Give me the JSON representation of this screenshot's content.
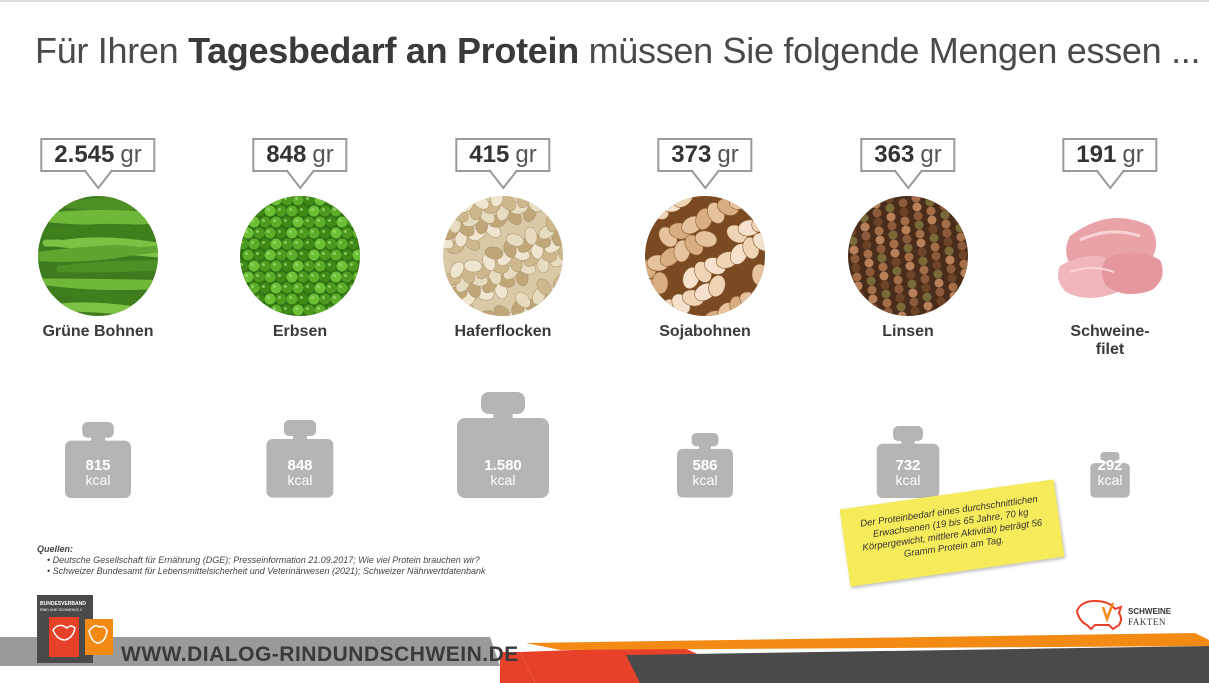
{
  "headline": {
    "prefix": "Für Ihren ",
    "bold": "Tagesbedarf an Protein",
    "suffix": " müssen Sie folgende Mengen essen ..."
  },
  "foods": [
    {
      "amount": "2.545",
      "unit": "gr",
      "name": "Grüne Bohnen",
      "kcal_value": "815",
      "kcal_unit": "kcal",
      "kcal": 815,
      "image": "green-beans-image"
    },
    {
      "amount": "848",
      "unit": "gr",
      "name": "Erbsen",
      "kcal_value": "848",
      "kcal_unit": "kcal",
      "kcal": 848,
      "image": "peas-image"
    },
    {
      "amount": "415",
      "unit": "gr",
      "name": "Haferflocken",
      "kcal_value": "1.580",
      "kcal_unit": "kcal",
      "kcal": 1580,
      "image": "oat-flakes-image"
    },
    {
      "amount": "373",
      "unit": "gr",
      "name": "Sojabohnen",
      "kcal_value": "586",
      "kcal_unit": "kcal",
      "kcal": 586,
      "image": "soybeans-image"
    },
    {
      "amount": "363",
      "unit": "gr",
      "name": "Linsen",
      "kcal_value": "732",
      "kcal_unit": "kcal",
      "kcal": 732,
      "image": "lentils-image"
    },
    {
      "amount": "191",
      "unit": "gr",
      "name": "Schweine-\nfilet",
      "kcal_value": "292",
      "kcal_unit": "kcal",
      "kcal": 292,
      "image": "pork-fillet-image"
    }
  ],
  "sources": {
    "title": "Quellen:",
    "items": [
      "Deutsche Gesellschaft für Ernährung (DGE); Presseinformation 21.09.2017; Wie viel Protein brauchen wir?",
      "Schweizer Bundesamt für Lebensmittelsicherheit und Veterinärwesen (2021); Schweizer Nährwertdatenbank"
    ]
  },
  "note": "Der Proteinbedarf eines durchschnittlichen Erwachsenen (19 bis 65 Jahre, 70 kg Körpergewicht, mittlere Aktivität) beträgt 56 Gramm Protein am Tag.",
  "footer": {
    "url": "WWW.DIALOG-RINDUNDSCHWEIN.DE",
    "logo_left_text1": "BUNDESVERBAND",
    "logo_left_text2": "RIND UND SCHWEIN E.V.",
    "logo_right_text1": "SCHWEINE",
    "logo_right_text2": "FAKTEN"
  },
  "colors": {
    "weight_gray": "#b5b5b5",
    "note_yellow": "#f6ec5b",
    "footer_red": "#e8412a",
    "footer_orange": "#f28a14",
    "footer_dark": "#4a4a4a",
    "footer_gray": "#9a9a9a"
  }
}
